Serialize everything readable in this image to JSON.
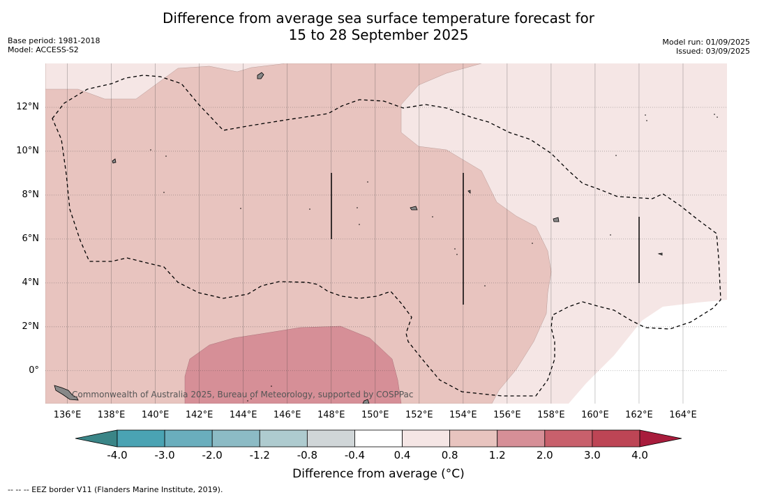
{
  "title_line1": "Difference from average sea surface temperature forecast for",
  "title_line2": "15 to 28 September 2025",
  "meta_left": [
    "Base period: 1981-2018",
    "Model: ACCESS-S2"
  ],
  "meta_right": [
    "Model run: 01/09/2025",
    "Issued: 03/09/2025"
  ],
  "credit": "Commonwealth of Australia 2025, Bureau of Meteorology, supported by COSPPac",
  "footnote": "--  --  -- EEZ border V11 (Flanders Marine Institute, 2019).",
  "map": {
    "lon_range": [
      135,
      166
    ],
    "lat_range": [
      -1.5,
      14
    ],
    "lon_ticks": [
      "136°E",
      "138°E",
      "140°E",
      "142°E",
      "144°E",
      "146°E",
      "148°E",
      "150°E",
      "152°E",
      "154°E",
      "156°E",
      "158°E",
      "160°E",
      "162°E",
      "164°E"
    ],
    "lon_values": [
      136,
      138,
      140,
      142,
      144,
      146,
      148,
      150,
      152,
      154,
      156,
      158,
      160,
      162,
      164
    ],
    "lat_ticks": [
      "12°N",
      "10°N",
      "8°N",
      "6°N",
      "4°N",
      "2°N",
      "0°"
    ],
    "lat_values": [
      12,
      10,
      8,
      6,
      4,
      2,
      0
    ]
  },
  "colorbar": {
    "title": "Difference from average ($^\\circ$C)",
    "title_display": "Difference from average (°C)",
    "labels": [
      "-4.0",
      "-3.0",
      "-2.0",
      "-1.2",
      "-0.8",
      "-0.4",
      "0.4",
      "0.8",
      "1.2",
      "2.0",
      "3.0",
      "4.0"
    ],
    "colors": [
      "#3a8e9e",
      "#4aa3b3",
      "#6aaebd",
      "#8cbbc5",
      "#aecbcf",
      "#d0d6d8",
      "#ffffff",
      "#f5e6e5",
      "#e8c4bf",
      "#d68f97",
      "#c8606c",
      "#bd4555",
      "#a81c3c"
    ],
    "below_color": "#3a8587",
    "above_color": "#a81c3c"
  }
}
